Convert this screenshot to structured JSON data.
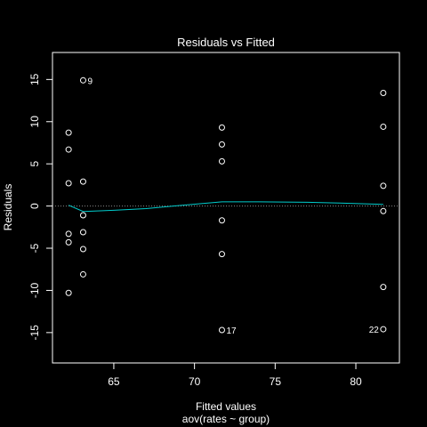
{
  "chart_data": {
    "type": "scatter",
    "title": "Residuals vs Fitted",
    "xlabel": "Fitted values",
    "ylabel": "Residuals",
    "subtitle": "aov(rates ~ group)",
    "xlim": [
      61.2,
      82.7
    ],
    "ylim": [
      -18.6,
      18.2
    ],
    "xticks": [
      65,
      70,
      75,
      80
    ],
    "yticks": [
      -15,
      -10,
      -5,
      0,
      5,
      10,
      15
    ],
    "grid": false,
    "points": [
      {
        "x": 62.2,
        "y": 8.7
      },
      {
        "x": 62.2,
        "y": 6.7
      },
      {
        "x": 62.2,
        "y": 2.7
      },
      {
        "x": 62.2,
        "y": -3.3
      },
      {
        "x": 62.2,
        "y": -4.3
      },
      {
        "x": 62.2,
        "y": -10.3
      },
      {
        "x": 63.1,
        "y": 14.9,
        "label": "9"
      },
      {
        "x": 63.1,
        "y": 2.9
      },
      {
        "x": 63.1,
        "y": -1.1
      },
      {
        "x": 63.1,
        "y": -3.1
      },
      {
        "x": 63.1,
        "y": -5.1
      },
      {
        "x": 63.1,
        "y": -8.1
      },
      {
        "x": 71.7,
        "y": 9.3
      },
      {
        "x": 71.7,
        "y": 7.3
      },
      {
        "x": 71.7,
        "y": 5.3
      },
      {
        "x": 71.7,
        "y": -1.7
      },
      {
        "x": 71.7,
        "y": -5.7
      },
      {
        "x": 71.7,
        "y": -14.7,
        "label": "17"
      },
      {
        "x": 81.7,
        "y": 13.4
      },
      {
        "x": 81.7,
        "y": 9.4
      },
      {
        "x": 81.7,
        "y": 2.4
      },
      {
        "x": 81.7,
        "y": -0.6
      },
      {
        "x": 81.7,
        "y": -9.6
      },
      {
        "x": 81.7,
        "y": -14.6,
        "label": "22"
      }
    ],
    "smooth_line": {
      "color": "#00cccc",
      "x": [
        62.2,
        63.1,
        65.0,
        67.0,
        69.0,
        71.7,
        74.0,
        77.0,
        79.0,
        81.7
      ],
      "y": [
        0.1,
        -0.65,
        -0.5,
        -0.3,
        0.05,
        0.5,
        0.5,
        0.45,
        0.35,
        0.2
      ]
    },
    "reference_line": {
      "y": 0,
      "style": "dotted",
      "color": "#888888"
    }
  }
}
